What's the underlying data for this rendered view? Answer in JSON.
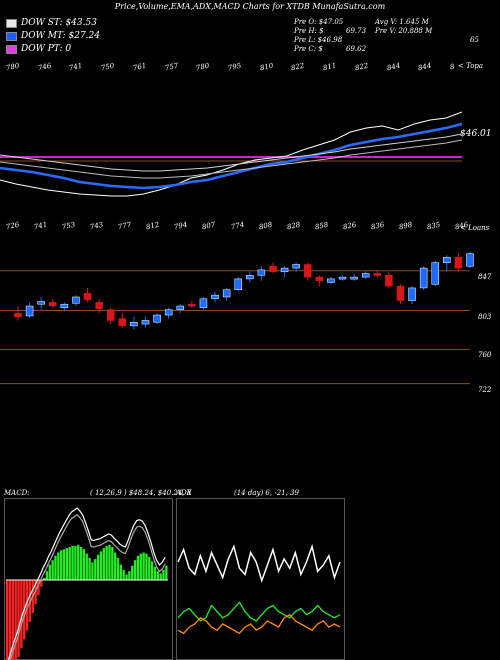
{
  "header": {
    "title": "Price,Volume,EMA,ADX,MACD Charts for XTDB MunafaSutra.com"
  },
  "legend": [
    {
      "label": "DOW ST: $43.53",
      "color": "#e8e8e8"
    },
    {
      "label": "DOW MT: $27.24",
      "color": "#1e5cff"
    },
    {
      "label": "DOW PT: 0",
      "color": "#e040e0"
    }
  ],
  "stats": {
    "pre_o": "Pre O: $47.05",
    "pre_h": "Pre H: $",
    "pre_l": "Pre L: $46.98",
    "pre_c": "Pre C: $",
    "avg_v": "Avg V: 1.645 M",
    "h_val": "69.73",
    "pre_v": "Pre V: 20.888 M",
    "c_val": "69.62"
  },
  "top_panel": {
    "corner_label": "65",
    "axis_label": "< Topa",
    "top_ticks": [
      "780",
      "746",
      "741",
      "750",
      "761",
      "757",
      "780",
      "795",
      "810",
      "822",
      "811",
      "822",
      "844",
      "844",
      "8"
    ],
    "price_label": "$46.01",
    "bottom_ticks": [
      "726",
      "741",
      "753",
      "743",
      "777",
      "812",
      "794",
      "807",
      "774",
      "808",
      "828",
      "858",
      "826",
      "836",
      "898",
      "835",
      "846"
    ]
  },
  "candle_panel": {
    "right_label": "< Loans",
    "levels": [
      "847",
      "803",
      "760",
      "722"
    ]
  },
  "macd": {
    "label": "MACD:",
    "values": "( 12,26,9 ) $48.24, $40.24, 8"
  },
  "adx": {
    "label": "ADX",
    "values": "(14 day) 6, -21, 39"
  },
  "chart_data": [
    {
      "type": "line",
      "panel": "ema",
      "series": [
        {
          "values": [
            810,
            806,
            803,
            800,
            798,
            796,
            795,
            794,
            794,
            796,
            800,
            805,
            812,
            815,
            820,
            826,
            830,
            832,
            834,
            840,
            845,
            850,
            858,
            862,
            864,
            860,
            866,
            870,
            872,
            878
          ]
        },
        {
          "values": [
            822,
            820,
            818,
            815,
            812,
            808,
            806,
            804,
            803,
            802,
            803,
            805,
            808,
            810,
            814,
            818,
            822,
            826,
            828,
            832,
            836,
            840,
            845,
            848,
            851,
            853,
            856,
            859,
            862,
            866
          ]
        },
        {
          "values": [
            835,
            833,
            831,
            829,
            827,
            825,
            823,
            821,
            820,
            819,
            819,
            820,
            821,
            822,
            824,
            826,
            828,
            830,
            832,
            834,
            836,
            838,
            841,
            843,
            845,
            847,
            849,
            851,
            853,
            856
          ]
        },
        {
          "values": [
            828,
            826,
            824,
            822,
            820,
            818,
            816,
            814,
            813,
            812,
            812,
            813,
            814,
            816,
            818,
            820,
            822,
            824,
            826,
            828,
            830,
            832,
            835,
            837,
            839,
            841,
            843,
            845,
            847,
            850
          ]
        }
      ],
      "levels": [
        {
          "name": "magenta",
          "value": 833
        },
        {
          "name": "brown",
          "value": 829
        }
      ]
    },
    {
      "type": "candlestick",
      "panel": "price",
      "levels": [
        847,
        803,
        760,
        722
      ],
      "candles": [
        {
          "o": 800,
          "h": 808,
          "l": 792,
          "c": 796,
          "dir": "down"
        },
        {
          "o": 797,
          "h": 812,
          "l": 795,
          "c": 808,
          "dir": "up"
        },
        {
          "o": 810,
          "h": 818,
          "l": 804,
          "c": 813,
          "dir": "up"
        },
        {
          "o": 812,
          "h": 816,
          "l": 806,
          "c": 808,
          "dir": "down"
        },
        {
          "o": 806,
          "h": 812,
          "l": 802,
          "c": 810,
          "dir": "up"
        },
        {
          "o": 811,
          "h": 820,
          "l": 808,
          "c": 818,
          "dir": "up"
        },
        {
          "o": 822,
          "h": 828,
          "l": 812,
          "c": 815,
          "dir": "down"
        },
        {
          "o": 812,
          "h": 816,
          "l": 800,
          "c": 805,
          "dir": "down"
        },
        {
          "o": 804,
          "h": 806,
          "l": 788,
          "c": 792,
          "dir": "down"
        },
        {
          "o": 794,
          "h": 800,
          "l": 784,
          "c": 786,
          "dir": "down"
        },
        {
          "o": 786,
          "h": 796,
          "l": 782,
          "c": 790,
          "dir": "up"
        },
        {
          "o": 788,
          "h": 796,
          "l": 784,
          "c": 792,
          "dir": "up"
        },
        {
          "o": 790,
          "h": 800,
          "l": 788,
          "c": 798,
          "dir": "up"
        },
        {
          "o": 798,
          "h": 806,
          "l": 794,
          "c": 804,
          "dir": "up"
        },
        {
          "o": 804,
          "h": 810,
          "l": 800,
          "c": 808,
          "dir": "up"
        },
        {
          "o": 810,
          "h": 814,
          "l": 806,
          "c": 808,
          "dir": "down"
        },
        {
          "o": 806,
          "h": 818,
          "l": 804,
          "c": 816,
          "dir": "up"
        },
        {
          "o": 816,
          "h": 824,
          "l": 812,
          "c": 820,
          "dir": "up"
        },
        {
          "o": 818,
          "h": 828,
          "l": 814,
          "c": 826,
          "dir": "up"
        },
        {
          "o": 826,
          "h": 840,
          "l": 824,
          "c": 838,
          "dir": "up"
        },
        {
          "o": 838,
          "h": 846,
          "l": 834,
          "c": 842,
          "dir": "up"
        },
        {
          "o": 842,
          "h": 852,
          "l": 836,
          "c": 848,
          "dir": "up"
        },
        {
          "o": 852,
          "h": 856,
          "l": 844,
          "c": 846,
          "dir": "down"
        },
        {
          "o": 846,
          "h": 852,
          "l": 840,
          "c": 850,
          "dir": "up"
        },
        {
          "o": 850,
          "h": 856,
          "l": 846,
          "c": 854,
          "dir": "up"
        },
        {
          "o": 854,
          "h": 856,
          "l": 836,
          "c": 840,
          "dir": "down"
        },
        {
          "o": 840,
          "h": 842,
          "l": 830,
          "c": 836,
          "dir": "down"
        },
        {
          "o": 834,
          "h": 840,
          "l": 832,
          "c": 838,
          "dir": "up"
        },
        {
          "o": 838,
          "h": 842,
          "l": 836,
          "c": 840,
          "dir": "up"
        },
        {
          "o": 840,
          "h": 844,
          "l": 836,
          "c": 840,
          "dir": "up"
        },
        {
          "o": 840,
          "h": 846,
          "l": 838,
          "c": 844,
          "dir": "up"
        },
        {
          "o": 844,
          "h": 848,
          "l": 840,
          "c": 842,
          "dir": "down"
        },
        {
          "o": 842,
          "h": 846,
          "l": 828,
          "c": 830,
          "dir": "down"
        },
        {
          "o": 830,
          "h": 832,
          "l": 810,
          "c": 814,
          "dir": "down"
        },
        {
          "o": 814,
          "h": 830,
          "l": 810,
          "c": 828,
          "dir": "up"
        },
        {
          "o": 828,
          "h": 852,
          "l": 826,
          "c": 850,
          "dir": "up"
        },
        {
          "o": 832,
          "h": 858,
          "l": 830,
          "c": 856,
          "dir": "up"
        },
        {
          "o": 856,
          "h": 864,
          "l": 846,
          "c": 862,
          "dir": "up"
        },
        {
          "o": 862,
          "h": 866,
          "l": 846,
          "c": 850,
          "dir": "down"
        },
        {
          "o": 852,
          "h": 868,
          "l": 850,
          "c": 866,
          "dir": "up"
        }
      ]
    },
    {
      "type": "bar",
      "panel": "macd_histogram",
      "values": [
        -9,
        -8.5,
        -8,
        -7.5,
        -7,
        -6.2,
        -5.4,
        -4.6,
        -3.8,
        -3,
        -2.2,
        -1.4,
        -0.6,
        0.2,
        0.8,
        1.4,
        1.8,
        2.2,
        2.5,
        2.7,
        2.8,
        2.9,
        3,
        3.1,
        3.1,
        3.2,
        3.0,
        2.8,
        2.4,
        2.0,
        1.6,
        1.9,
        2.3,
        2.6,
        2.9,
        3.1,
        3.2,
        3.0,
        2.5,
        2.0,
        1.4,
        0.9,
        0.5,
        0.8,
        1.3,
        1.8,
        2.2,
        2.4,
        2.5,
        2.4,
        2.1,
        1.7,
        1.2,
        0.8,
        0.6,
        0.9,
        1.3
      ]
    },
    {
      "type": "line",
      "panel": "adx",
      "series": [
        {
          "values": [
            30,
            34,
            28,
            26,
            32,
            27,
            33,
            29,
            25,
            31,
            35,
            28,
            26,
            33,
            30,
            24,
            29,
            34,
            27,
            31,
            28,
            33,
            26,
            30,
            35,
            27,
            29,
            32,
            25,
            30
          ]
        },
        {
          "values": [
            12,
            14,
            15,
            13,
            11,
            12,
            16,
            14,
            12,
            13,
            15,
            17,
            14,
            12,
            11,
            13,
            15,
            16,
            14,
            13,
            12,
            14,
            15,
            13,
            14,
            16,
            14,
            13,
            12,
            13
          ]
        },
        {
          "values": [
            8,
            7,
            9,
            10,
            12,
            11,
            9,
            8,
            10,
            9,
            8,
            7,
            9,
            10,
            8,
            9,
            11,
            10,
            9,
            12,
            13,
            11,
            10,
            9,
            8,
            10,
            11,
            9,
            10,
            9
          ]
        }
      ]
    }
  ]
}
